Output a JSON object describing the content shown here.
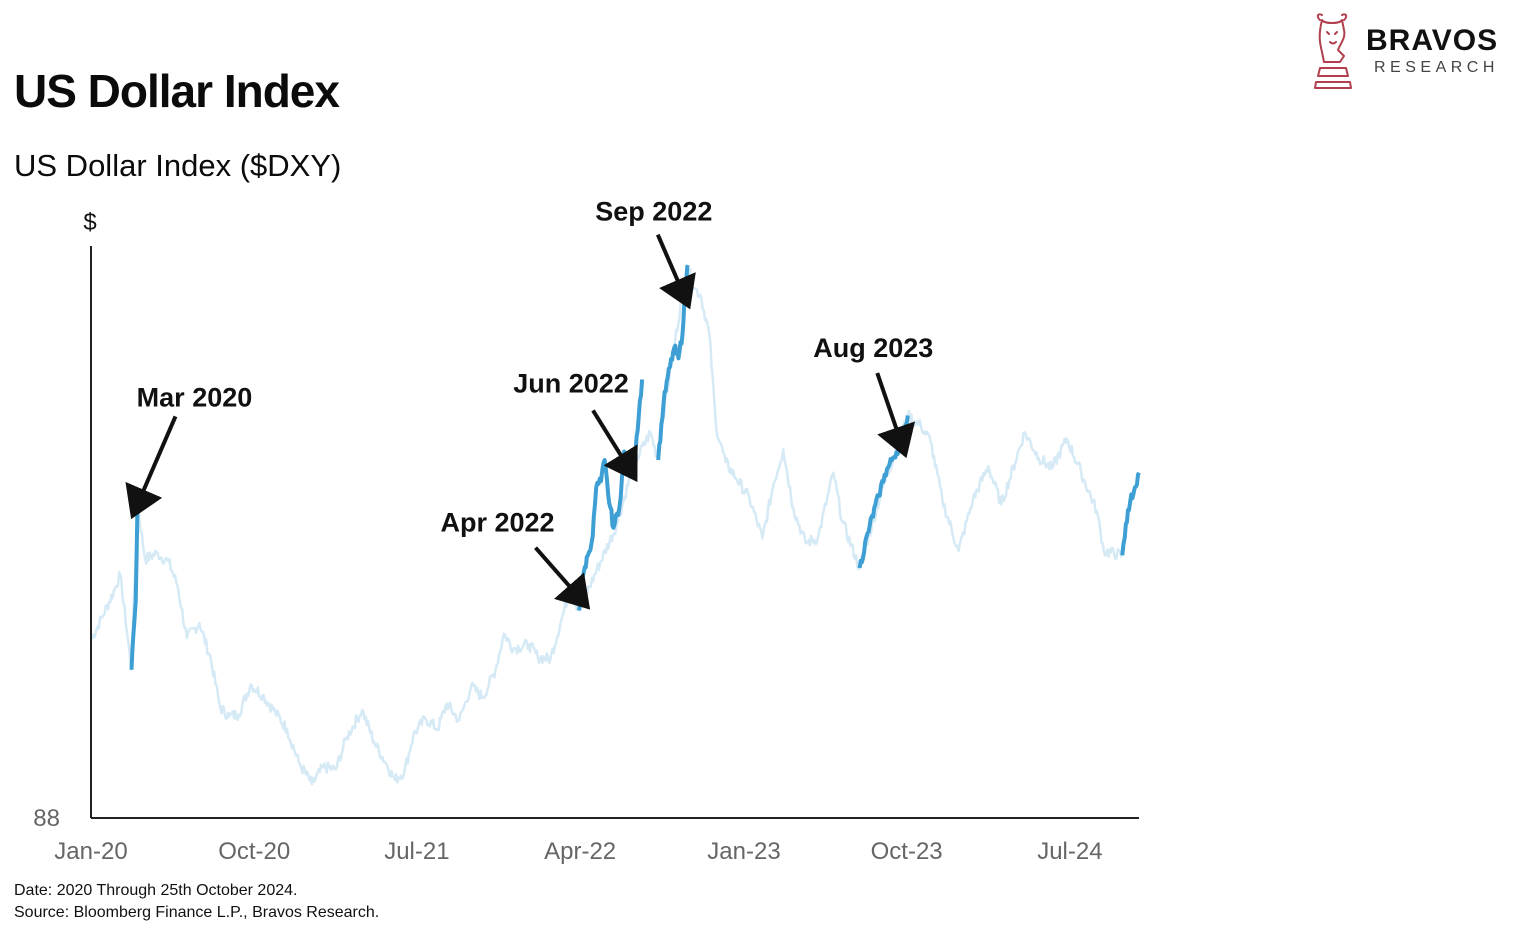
{
  "header": {
    "title": "US Dollar Index",
    "subtitle": "US Dollar Index ($DXY)"
  },
  "logo": {
    "name": "BRAVOS",
    "sub": "RESEARCH",
    "icon": "bull-chess-knight-icon",
    "color": "#b0404e"
  },
  "footnotes": [
    "Date: 2020 Through 25th October 2024.",
    "Source: Bloomberg Finance L.P., Bravos Research."
  ],
  "colors": {
    "highlight": "#3d9fd3",
    "background_series": "#d6eaf6",
    "axis": "#222222",
    "annotation": "#111111"
  },
  "chart_data": {
    "type": "line",
    "ylabel": "$",
    "y_tick_labels": [
      "88"
    ],
    "x_tick_labels": [
      "Jan-20",
      "Oct-20",
      "Jul-21",
      "Apr-22",
      "Jan-23",
      "Oct-23",
      "Jul-24"
    ],
    "ylim": [
      88,
      115
    ],
    "xlim": [
      "2020-01-01",
      "2024-10-25"
    ],
    "grid": false,
    "series": [
      {
        "style": "background",
        "points": [
          [
            "2020-01-01",
            96.4
          ],
          [
            "2020-01-20",
            97.5
          ],
          [
            "2020-02-10",
            98.8
          ],
          [
            "2020-02-19",
            99.5
          ],
          [
            "2020-03-09",
            95.0
          ],
          [
            "2020-03-19",
            102.8
          ],
          [
            "2020-04-01",
            100.2
          ],
          [
            "2020-04-20",
            100.5
          ],
          [
            "2020-05-10",
            100.1
          ],
          [
            "2020-05-25",
            99.0
          ],
          [
            "2020-06-10",
            96.5
          ],
          [
            "2020-07-01",
            97.2
          ],
          [
            "2020-07-20",
            95.5
          ],
          [
            "2020-08-05",
            93.2
          ],
          [
            "2020-08-20",
            92.8
          ],
          [
            "2020-09-05",
            92.9
          ],
          [
            "2020-09-25",
            94.3
          ],
          [
            "2020-10-15",
            93.8
          ],
          [
            "2020-11-05",
            93.0
          ],
          [
            "2020-11-25",
            92.2
          ],
          [
            "2020-12-15",
            90.6
          ],
          [
            "2021-01-06",
            89.6
          ],
          [
            "2021-01-25",
            90.4
          ],
          [
            "2021-02-15",
            90.3
          ],
          [
            "2021-03-05",
            91.8
          ],
          [
            "2021-03-31",
            93.1
          ],
          [
            "2021-04-20",
            91.6
          ],
          [
            "2021-05-10",
            90.6
          ],
          [
            "2021-05-25",
            89.8
          ],
          [
            "2021-06-10",
            90.2
          ],
          [
            "2021-06-25",
            91.9
          ],
          [
            "2021-07-15",
            92.7
          ],
          [
            "2021-08-05",
            92.2
          ],
          [
            "2021-08-20",
            93.4
          ],
          [
            "2021-09-10",
            92.6
          ],
          [
            "2021-09-30",
            94.2
          ],
          [
            "2021-10-20",
            93.7
          ],
          [
            "2021-11-10",
            95.0
          ],
          [
            "2021-11-24",
            96.7
          ],
          [
            "2021-12-10",
            96.0
          ],
          [
            "2022-01-05",
            96.2
          ],
          [
            "2022-01-20",
            95.6
          ],
          [
            "2022-02-10",
            95.5
          ],
          [
            "2022-03-01",
            97.4
          ],
          [
            "2022-03-15",
            98.8
          ],
          [
            "2022-03-30",
            97.8
          ],
          [
            "2022-06-01",
            101.8
          ],
          [
            "2022-06-30",
            104.7
          ],
          [
            "2022-07-28",
            106.2
          ],
          [
            "2022-08-08",
            105.1
          ],
          [
            "2022-09-27",
            114.1
          ],
          [
            "2022-10-10",
            113.0
          ],
          [
            "2022-10-20",
            112.7
          ],
          [
            "2022-11-04",
            110.8
          ],
          [
            "2022-11-15",
            106.5
          ],
          [
            "2022-12-01",
            104.8
          ],
          [
            "2022-12-20",
            104.0
          ],
          [
            "2023-01-10",
            103.1
          ],
          [
            "2023-02-01",
            101.2
          ],
          [
            "2023-02-20",
            103.8
          ],
          [
            "2023-03-08",
            105.4
          ],
          [
            "2023-03-25",
            102.6
          ],
          [
            "2023-04-14",
            101.0
          ],
          [
            "2023-05-05",
            101.2
          ],
          [
            "2023-05-31",
            104.3
          ],
          [
            "2023-06-15",
            102.0
          ],
          [
            "2023-07-14",
            99.8
          ],
          [
            "2023-08-22",
            103.6
          ],
          [
            "2023-10-03",
            107.0
          ],
          [
            "2023-10-25",
            106.5
          ],
          [
            "2023-11-10",
            105.8
          ],
          [
            "2023-11-30",
            103.0
          ],
          [
            "2023-12-27",
            100.6
          ],
          [
            "2024-01-20",
            103.0
          ],
          [
            "2024-02-15",
            104.6
          ],
          [
            "2024-03-08",
            102.8
          ],
          [
            "2024-04-16",
            106.2
          ],
          [
            "2024-05-10",
            105.0
          ],
          [
            "2024-06-01",
            104.5
          ],
          [
            "2024-06-26",
            105.9
          ],
          [
            "2024-07-20",
            104.3
          ],
          [
            "2024-08-15",
            102.5
          ],
          [
            "2024-08-27",
            100.6
          ],
          [
            "2024-09-27",
            100.4
          ]
        ]
      },
      {
        "style": "highlight",
        "points": [
          [
            "2020-03-09",
            95.0
          ],
          [
            "2020-03-12",
            96.6
          ],
          [
            "2020-03-16",
            98.2
          ],
          [
            "2020-03-19",
            102.8
          ]
        ]
      },
      {
        "style": "highlight",
        "points": [
          [
            "2022-03-30",
            97.8
          ],
          [
            "2022-04-07",
            99.6
          ],
          [
            "2022-04-14",
            100.4
          ],
          [
            "2022-04-22",
            101.3
          ],
          [
            "2022-04-28",
            103.6
          ],
          [
            "2022-05-06",
            103.9
          ],
          [
            "2022-05-12",
            104.9
          ],
          [
            "2022-05-18",
            103.3
          ],
          [
            "2022-05-27",
            101.7
          ],
          [
            "2022-06-06",
            102.7
          ],
          [
            "2022-06-14",
            105.3
          ],
          [
            "2022-06-22",
            104.4
          ],
          [
            "2022-07-01",
            104.9
          ],
          [
            "2022-07-14",
            108.7
          ]
        ]
      },
      {
        "style": "highlight",
        "points": [
          [
            "2022-08-10",
            104.9
          ],
          [
            "2022-08-19",
            107.6
          ],
          [
            "2022-08-26",
            108.8
          ],
          [
            "2022-09-06",
            110.2
          ],
          [
            "2022-09-13",
            109.7
          ],
          [
            "2022-09-20",
            110.9
          ],
          [
            "2022-09-23",
            112.5
          ],
          [
            "2022-09-28",
            114.1
          ]
        ]
      },
      {
        "style": "highlight",
        "points": [
          [
            "2023-07-14",
            99.8
          ],
          [
            "2023-07-31",
            101.8
          ],
          [
            "2023-08-15",
            103.2
          ],
          [
            "2023-08-25",
            104.2
          ],
          [
            "2023-09-08",
            105.0
          ],
          [
            "2023-09-22",
            105.7
          ],
          [
            "2023-10-03",
            107.0
          ]
        ]
      },
      {
        "style": "highlight",
        "points": [
          [
            "2024-09-27",
            100.4
          ],
          [
            "2024-10-03",
            101.9
          ],
          [
            "2024-10-10",
            102.9
          ],
          [
            "2024-10-18",
            103.6
          ],
          [
            "2024-10-25",
            104.3
          ]
        ]
      }
    ],
    "annotations": [
      {
        "text": "Mar 2020",
        "date": "2020-03-19",
        "value": 102.8
      },
      {
        "text": "Apr 2022",
        "date": "2022-03-31",
        "value": 98.4
      },
      {
        "text": "Jun 2022",
        "date": "2022-06-22",
        "value": 104.5
      },
      {
        "text": "Sep 2022",
        "date": "2022-09-22",
        "value": 112.7
      },
      {
        "text": "Aug 2023",
        "date": "2023-09-22",
        "value": 105.7
      }
    ]
  }
}
